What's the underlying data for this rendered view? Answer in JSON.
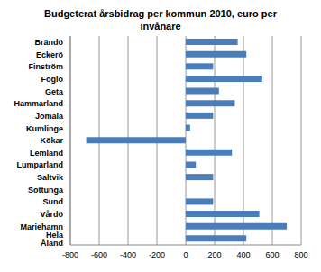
{
  "chart_data": {
    "type": "bar",
    "title": "Budgeterat årsbidrag per kommun 2010, euro per invånare",
    "orientation": "horizontal",
    "categories": [
      "Brändö",
      "Eckerö",
      "Finström",
      "Föglö",
      "Geta",
      "Hammarland",
      "Jomala",
      "Kumlinge",
      "Kökar",
      "Lemland",
      "Lumparland",
      "Saltvik",
      "Sottunga",
      "Sund",
      "Vårdö",
      "Mariehamn",
      "Hela Åland"
    ],
    "values": [
      360,
      420,
      190,
      530,
      230,
      340,
      190,
      30,
      -690,
      320,
      70,
      190,
      0,
      190,
      510,
      700,
      420
    ],
    "color": "#4a7ebb",
    "xlim": [
      -800,
      800
    ],
    "xticks": [
      -800,
      -600,
      -400,
      -200,
      0,
      200,
      400,
      600,
      800
    ],
    "grid": true
  }
}
